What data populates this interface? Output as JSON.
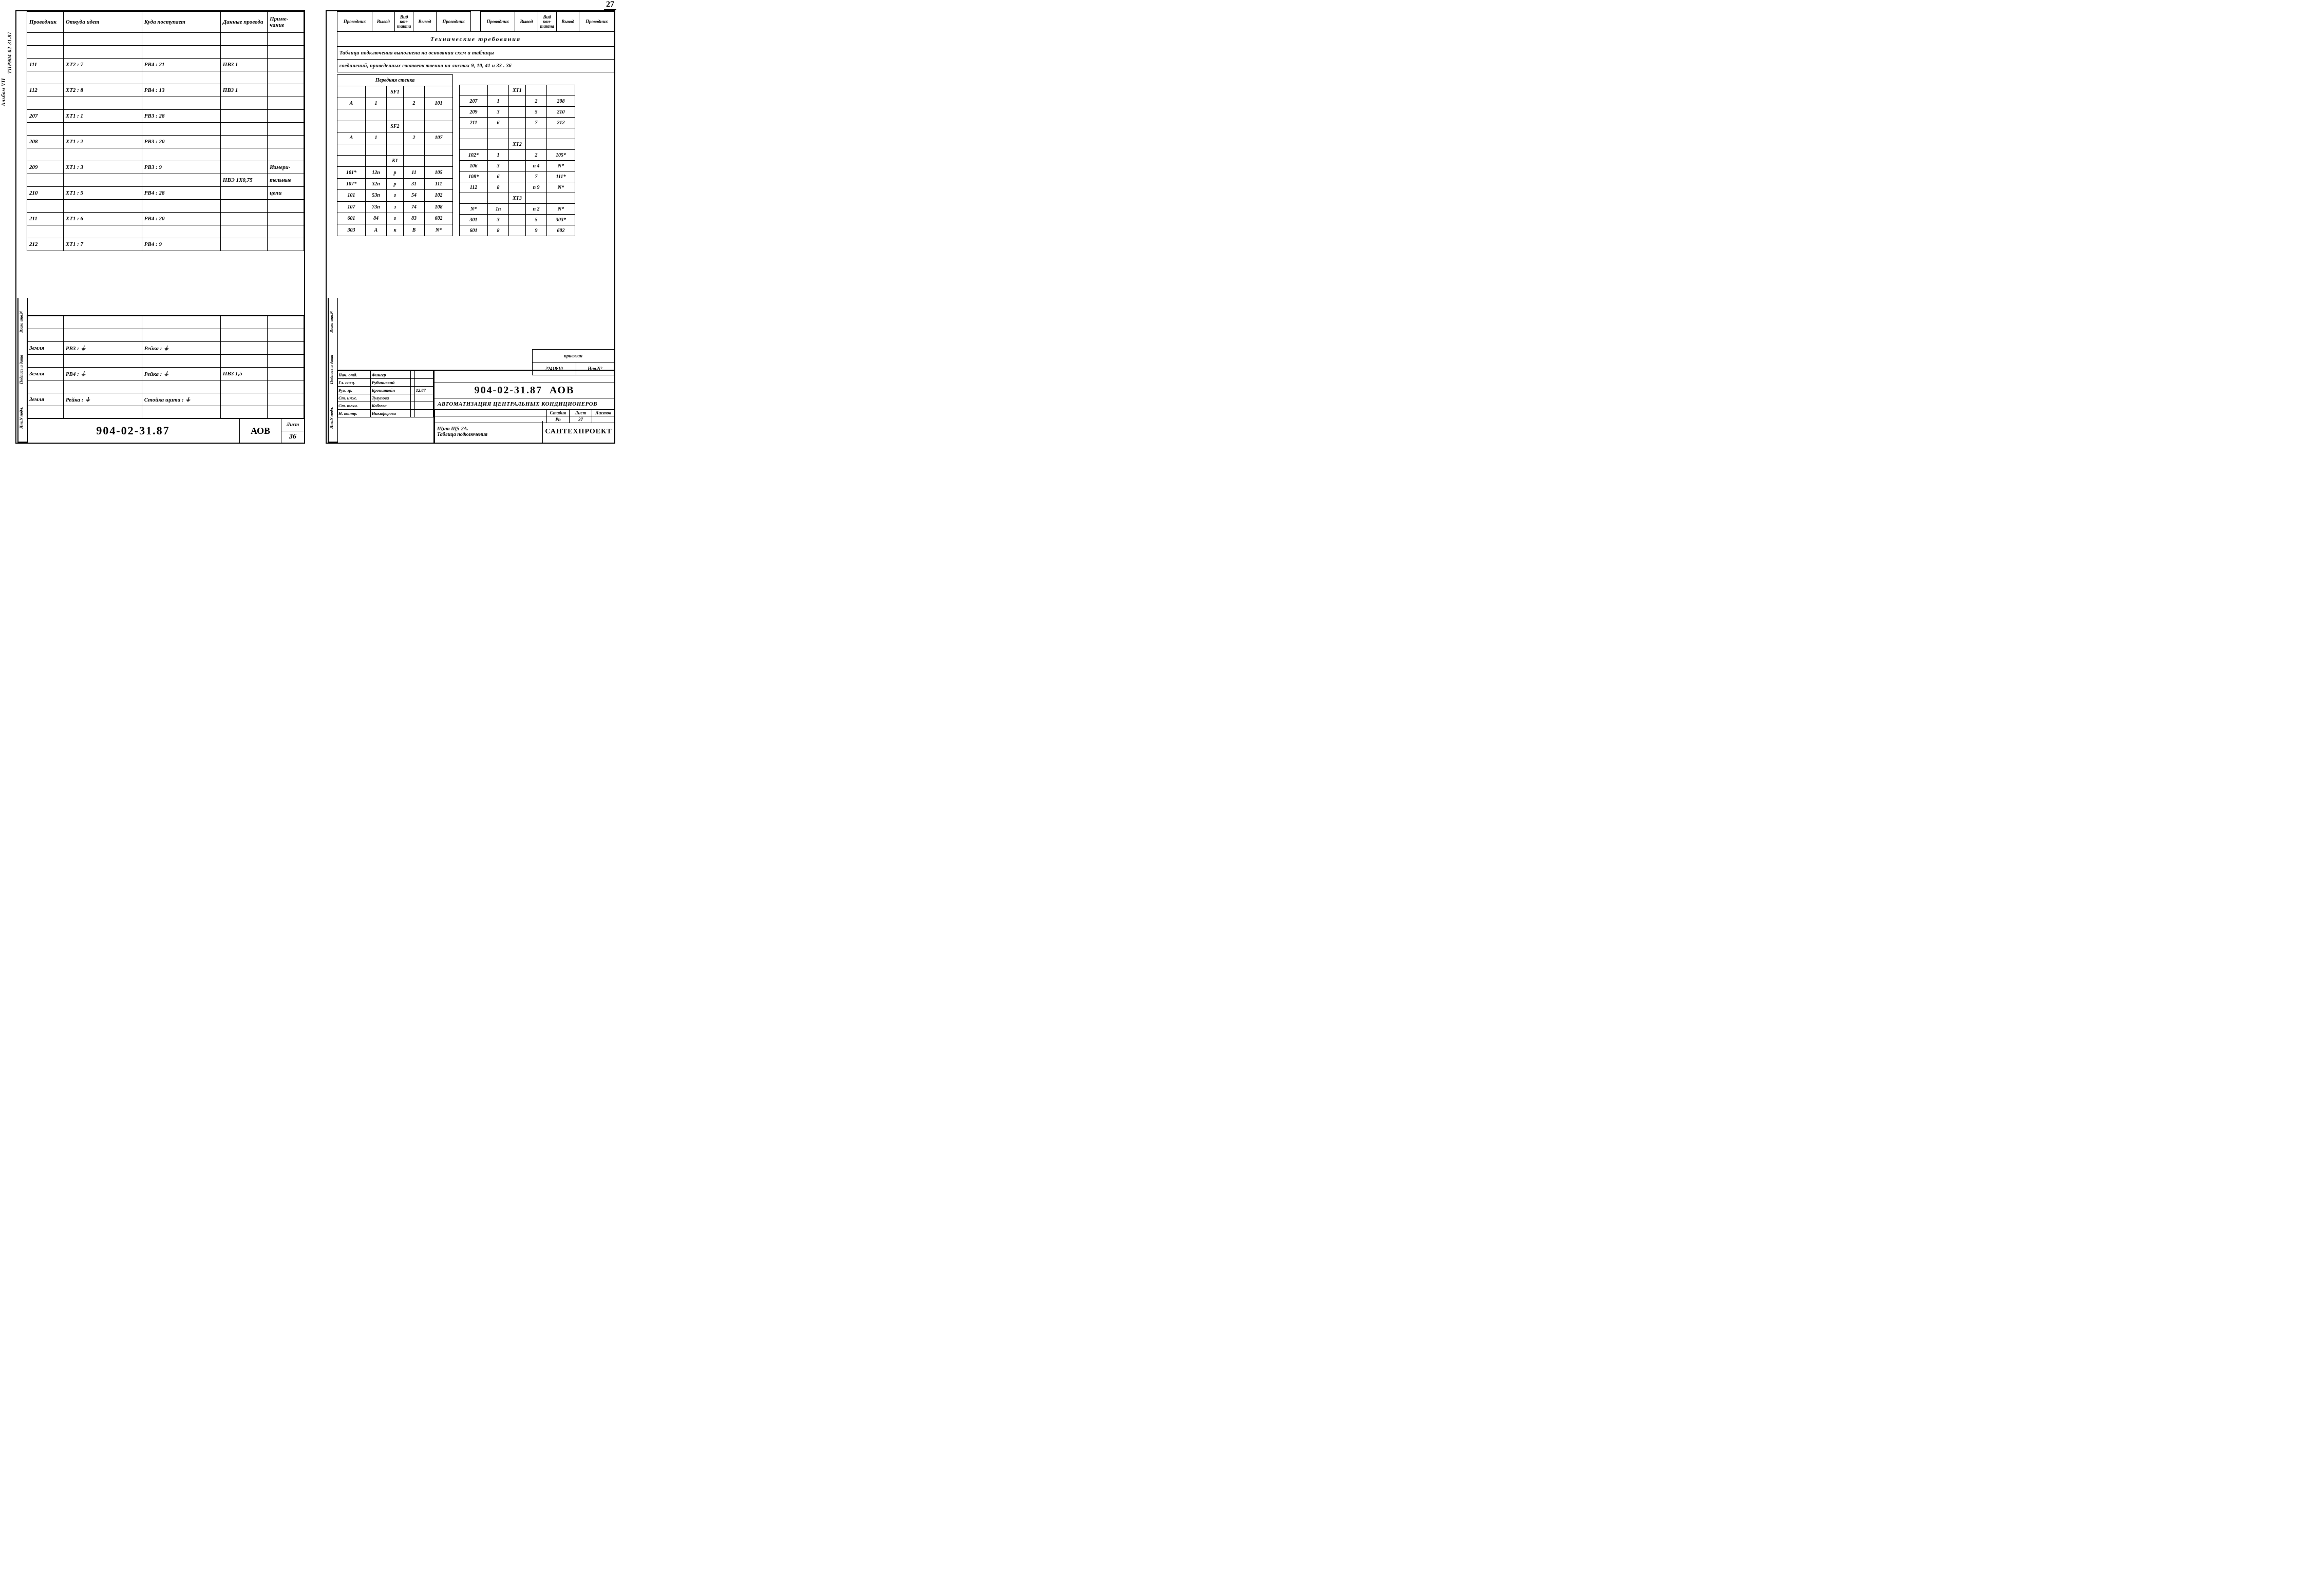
{
  "page_number_top": "27",
  "side_project": "ТПР904-02-31.87",
  "side_album": "Альбом VII",
  "side_labels": [
    "Инв.N подл.",
    "Подпись и дата",
    "Взам. инв.N"
  ],
  "left": {
    "headers": [
      "Проводник",
      "Откуда идет",
      "Куда поступает",
      "Данные провода",
      "Приме-\nчание"
    ],
    "rows": [
      [
        "",
        "",
        "",
        "",
        ""
      ],
      [
        "",
        "",
        "",
        "",
        ""
      ],
      [
        "111",
        "XT2 : 7",
        "PB4 : 21",
        "ПВ3   1",
        ""
      ],
      [
        "",
        "",
        "",
        "",
        ""
      ],
      [
        "112",
        "XT2 : 8",
        "PB4 : 13",
        "ПВ3   1",
        ""
      ],
      [
        "",
        "",
        "",
        "",
        ""
      ],
      [
        "207",
        "XT1 : 1",
        "PB3 : 28",
        "",
        ""
      ],
      [
        "",
        "",
        "",
        "",
        ""
      ],
      [
        "208",
        "XT1 : 2",
        "PB3 : 20",
        "",
        ""
      ],
      [
        "",
        "",
        "",
        "",
        ""
      ],
      [
        "209",
        "XT1 : 3",
        "PB3 : 9",
        "",
        "Измери-"
      ],
      [
        "",
        "",
        "",
        "НВЭ 1X0,75",
        "тельные"
      ],
      [
        "210",
        "XT1 : 5",
        "PB4 : 28",
        "",
        "цепи"
      ],
      [
        "",
        "",
        "",
        "",
        ""
      ],
      [
        "211",
        "XT1 : 6",
        "PB4 : 20",
        "",
        ""
      ],
      [
        "",
        "",
        "",
        "",
        ""
      ],
      [
        "212",
        "XT1 : 7",
        "PB4 : 9",
        "",
        ""
      ]
    ],
    "lower_rows": [
      [
        "",
        "",
        "",
        "",
        ""
      ],
      [
        "",
        "",
        "",
        "",
        ""
      ],
      [
        "Земля",
        "PB3 : ⏚",
        "Рейка : ⏚",
        "",
        ""
      ],
      [
        "",
        "",
        "",
        "",
        ""
      ],
      [
        "Земля",
        "PB4 : ⏚",
        "Рейка : ⏚",
        "ПВ3  1,5",
        ""
      ],
      [
        "",
        "",
        "",
        "",
        ""
      ],
      [
        "Земля",
        "Рейка : ⏚",
        "Стойка щита : ⏚",
        "",
        ""
      ],
      [
        "",
        "",
        "",
        "",
        ""
      ]
    ],
    "doc_number": "904-02-31.87",
    "doc_code": "АОВ",
    "sheet_label": "Лист",
    "sheet_no": "36"
  },
  "right": {
    "headers": [
      "Проводник",
      "Вывод",
      "Вид кон-такта",
      "Вывод",
      "Проводник"
    ],
    "tech_title": "Технические   требования",
    "note1": "Таблица подключения выполнена на основании схем и таблицы",
    "note2": "соединений, приведенных соответственно на листах 9, 10, 41 и 33 . 36",
    "wall_title": "Передняя   стенка",
    "leftTable": [
      [
        "",
        "",
        "SF1",
        "",
        ""
      ],
      [
        "A",
        "1",
        "",
        "2",
        "101"
      ],
      [
        "",
        "",
        "",
        "",
        ""
      ],
      [
        "",
        "",
        "SF2",
        "",
        ""
      ],
      [
        "A",
        "1",
        "",
        "2",
        "107"
      ],
      [
        "",
        "",
        "",
        "",
        ""
      ],
      [
        "",
        "",
        "K1",
        "",
        ""
      ],
      [
        "101*",
        "12п",
        "р",
        "11",
        "105"
      ],
      [
        "107*",
        "32п",
        "р",
        "31",
        "111"
      ],
      [
        "101",
        "53п",
        "з",
        "54",
        "102"
      ],
      [
        "107",
        "73п",
        "з",
        "74",
        "108"
      ],
      [
        "601",
        "84",
        "з",
        "83",
        "602"
      ],
      [
        "303",
        "A",
        "к",
        "B",
        "N*"
      ]
    ],
    "rightTable": [
      [
        "",
        "",
        "XT1",
        "",
        ""
      ],
      [
        "207",
        "1",
        "",
        "2",
        "208"
      ],
      [
        "209",
        "3",
        "",
        "5",
        "210"
      ],
      [
        "211",
        "6",
        "",
        "7",
        "212"
      ],
      [
        "",
        "",
        "",
        "",
        ""
      ],
      [
        "",
        "",
        "XT2",
        "",
        ""
      ],
      [
        "102*",
        "1",
        "",
        "2",
        "105*"
      ],
      [
        "106",
        "3",
        "",
        "п 4",
        "N*"
      ],
      [
        "108*",
        "6",
        "",
        "7",
        "111*"
      ],
      [
        "112",
        "8",
        "",
        "п 9",
        "N*"
      ],
      [
        "",
        "",
        "XT3",
        "",
        ""
      ],
      [
        "N*",
        "1п",
        "",
        "п 2",
        "N*"
      ],
      [
        "301",
        "3",
        "",
        "5",
        "303*"
      ],
      [
        "601",
        "8",
        "",
        "9",
        "602"
      ]
    ],
    "priv_label": "привязан",
    "order_no": "22418·10",
    "inv_label": "Инв.N°",
    "roles": [
      [
        "Нач. отд.",
        "Фингер",
        "",
        ""
      ],
      [
        "Гл. спец.",
        "Рубчинский",
        "",
        ""
      ],
      [
        "Рук. гр.",
        "Бронштейн",
        "",
        "12.87"
      ],
      [
        "Ст. инж.",
        "Тулупова",
        "",
        ""
      ],
      [
        "Ст. техн.",
        "Кобзева",
        "",
        ""
      ],
      [
        "Н. контр.",
        "Никифорова",
        "",
        ""
      ]
    ],
    "doc_number": "904-02-31.87",
    "doc_code": "АОВ",
    "project_title": "Автоматизация центральных кондиционеров",
    "stage_hdr": [
      "Стадия",
      "Лист",
      "Листов"
    ],
    "stage_vals": [
      "Рп",
      "37",
      ""
    ],
    "subtitle": "Щит Щ5-2А.\nТаблица подключения",
    "org": "САНТЕХПРОЕКТ"
  }
}
